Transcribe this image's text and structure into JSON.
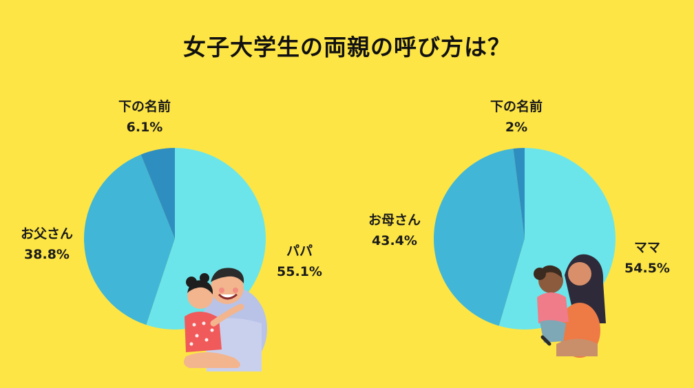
{
  "title": "女子大学生の両親の呼び方は？",
  "chart_data": [
    {
      "type": "pie",
      "title": "",
      "categories": [
        "パパ",
        "お父さん",
        "下の名前"
      ],
      "values": [
        55.1,
        38.8,
        6.1
      ],
      "value_labels": [
        "55.1%",
        "38.8%",
        "6.1%"
      ],
      "colors": [
        "#6CE5EA",
        "#41B6D6",
        "#2F8EC0"
      ]
    },
    {
      "type": "pie",
      "title": "",
      "categories": [
        "ママ",
        "お母さん",
        "下の名前"
      ],
      "values": [
        54.5,
        43.4,
        2
      ],
      "value_labels": [
        "54.5%",
        "43.4%",
        "2%"
      ],
      "colors": [
        "#6CE5EA",
        "#41B6D6",
        "#2F8EC0"
      ]
    }
  ],
  "colors": {
    "background": "#FDE545"
  }
}
